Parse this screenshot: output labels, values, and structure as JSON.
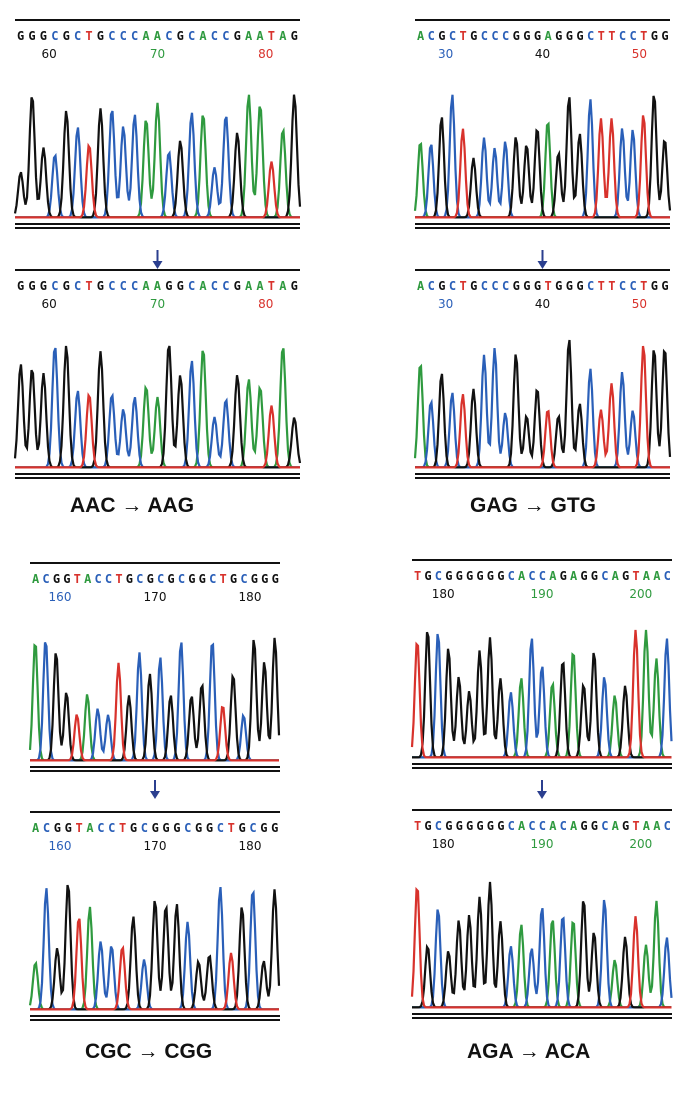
{
  "base_colors": {
    "A": "#2f9a3f",
    "C": "#2a5fb8",
    "G": "#111111",
    "T": "#d8322c"
  },
  "panels": [
    {
      "tracks": [
        {
          "sequence": "GGGCGCTGCCCAACGCACCGAATAG",
          "positions": [
            60,
            70,
            80
          ],
          "position_colors": [
            "#111111",
            "#2f9a3f",
            "#d8322c"
          ]
        },
        {
          "sequence": "GGGCGCTGCCCAAGGCACCGAATAG",
          "positions": [
            60,
            70,
            80
          ],
          "position_colors": [
            "#111111",
            "#2f9a3f",
            "#d8322c"
          ]
        }
      ],
      "mutation": "AAC → AAG"
    },
    {
      "tracks": [
        {
          "sequence": "ACGCTGCCCGGGAGGGCTTCCTGG",
          "positions": [
            30,
            40,
            50
          ],
          "position_colors": [
            "#2a5fb8",
            "#111111",
            "#d8322c"
          ]
        },
        {
          "sequence": "ACGCTGCCCGGGTGGGCTTCCTGG",
          "positions": [
            30,
            40,
            50
          ],
          "position_colors": [
            "#2a5fb8",
            "#111111",
            "#d8322c"
          ]
        }
      ],
      "mutation": "GAG → GTG"
    },
    {
      "tracks": [
        {
          "sequence": "ACGGTACCTGCGCGCGGCTGCGGG",
          "positions": [
            160,
            170,
            180
          ],
          "position_colors": [
            "#2a5fb8",
            "#111111",
            "#111111"
          ]
        },
        {
          "sequence": "ACGGTACCTGCGGGCGGCTGCGG",
          "positions": [
            160,
            170,
            180
          ],
          "position_colors": [
            "#2a5fb8",
            "#111111",
            "#111111"
          ]
        }
      ],
      "mutation": "CGC → CGG"
    },
    {
      "tracks": [
        {
          "sequence": "TGCGGGGGGCACCAGAGGCAGTAAC",
          "positions": [
            180,
            190,
            200
          ],
          "position_colors": [
            "#111111",
            "#2f9a3f",
            "#2f9a3f"
          ]
        },
        {
          "sequence": "TGCGGGGGGCACCACAGGCAGTAAC",
          "positions": [
            180,
            190,
            200
          ],
          "position_colors": [
            "#111111",
            "#2f9a3f",
            "#2f9a3f"
          ]
        }
      ],
      "mutation": "AGA → ACA"
    }
  ]
}
